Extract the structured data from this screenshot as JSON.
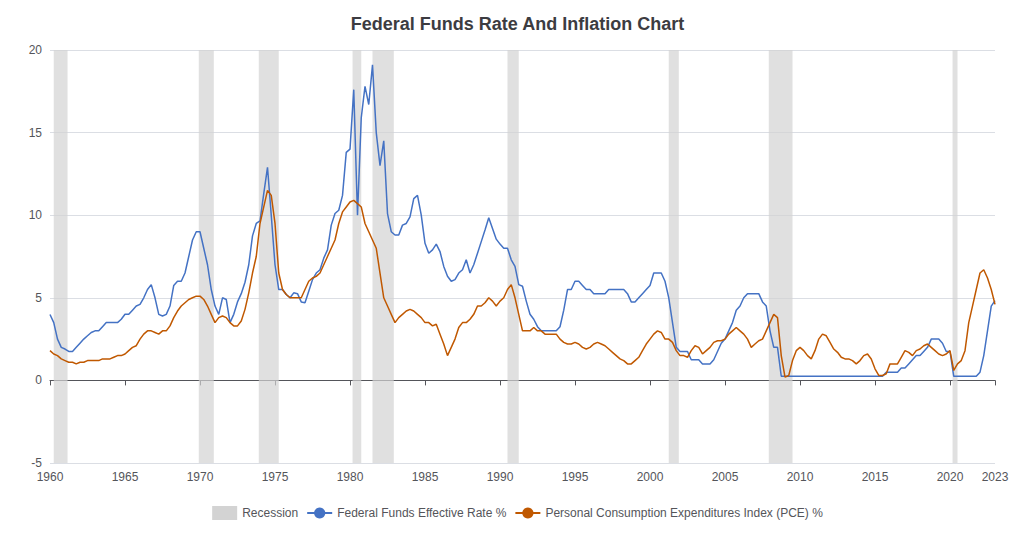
{
  "chart_data": {
    "type": "line",
    "title": "Federal Funds Rate And Inflation Chart",
    "xlim": [
      1960,
      2023
    ],
    "xticks": [
      1960,
      1965,
      1970,
      1975,
      1980,
      1985,
      1990,
      1995,
      2000,
      2005,
      2010,
      2015,
      2020
    ],
    "ylim": [
      -5,
      20
    ],
    "yticks": [
      -5,
      0,
      5,
      10,
      15,
      20
    ],
    "grid": true,
    "legend": "bottom",
    "recession": {
      "name": "Recession",
      "color": "#d3d3d3",
      "periods": [
        [
          1960.25,
          1961.17
        ],
        [
          1969.92,
          1970.92
        ],
        [
          1973.92,
          1975.25
        ],
        [
          1980.17,
          1980.75
        ],
        [
          1981.5,
          1982.92
        ],
        [
          1990.5,
          1991.25
        ],
        [
          2001.25,
          2001.92
        ],
        [
          2007.92,
          2009.5
        ],
        [
          2020.17,
          2020.5
        ]
      ]
    },
    "x": [
      1960.0,
      1960.25,
      1960.5,
      1960.75,
      1961.0,
      1961.25,
      1961.5,
      1961.75,
      1962.0,
      1962.25,
      1962.5,
      1962.75,
      1963.0,
      1963.25,
      1963.5,
      1963.75,
      1964.0,
      1964.25,
      1964.5,
      1964.75,
      1965.0,
      1965.25,
      1965.5,
      1965.75,
      1966.0,
      1966.25,
      1966.5,
      1966.75,
      1967.0,
      1967.25,
      1967.5,
      1967.75,
      1968.0,
      1968.25,
      1968.5,
      1968.75,
      1969.0,
      1969.25,
      1969.5,
      1969.75,
      1970.0,
      1970.25,
      1970.5,
      1970.75,
      1971.0,
      1971.25,
      1971.5,
      1971.75,
      1972.0,
      1972.25,
      1972.5,
      1972.75,
      1973.0,
      1973.25,
      1973.5,
      1973.75,
      1974.0,
      1974.25,
      1974.5,
      1974.75,
      1975.0,
      1975.25,
      1975.5,
      1975.75,
      1976.0,
      1976.25,
      1976.5,
      1976.75,
      1977.0,
      1977.25,
      1977.5,
      1977.75,
      1978.0,
      1978.25,
      1978.5,
      1978.75,
      1979.0,
      1979.25,
      1979.5,
      1979.75,
      1980.0,
      1980.25,
      1980.5,
      1980.75,
      1981.0,
      1981.25,
      1981.5,
      1981.75,
      1982.0,
      1982.25,
      1982.5,
      1982.75,
      1983.0,
      1983.25,
      1983.5,
      1983.75,
      1984.0,
      1984.25,
      1984.5,
      1984.75,
      1985.0,
      1985.25,
      1985.5,
      1985.75,
      1986.0,
      1986.25,
      1986.5,
      1986.75,
      1987.0,
      1987.25,
      1987.5,
      1987.75,
      1988.0,
      1988.25,
      1988.5,
      1988.75,
      1989.0,
      1989.25,
      1989.5,
      1989.75,
      1990.0,
      1990.25,
      1990.5,
      1990.75,
      1991.0,
      1991.25,
      1991.5,
      1991.75,
      1992.0,
      1992.25,
      1992.5,
      1992.75,
      1993.0,
      1993.25,
      1993.5,
      1993.75,
      1994.0,
      1994.25,
      1994.5,
      1994.75,
      1995.0,
      1995.25,
      1995.5,
      1995.75,
      1996.0,
      1996.25,
      1996.5,
      1996.75,
      1997.0,
      1997.25,
      1997.5,
      1997.75,
      1998.0,
      1998.25,
      1998.5,
      1998.75,
      1999.0,
      1999.25,
      1999.5,
      1999.75,
      2000.0,
      2000.25,
      2000.5,
      2000.75,
      2001.0,
      2001.25,
      2001.5,
      2001.75,
      2002.0,
      2002.25,
      2002.5,
      2002.75,
      2003.0,
      2003.25,
      2003.5,
      2003.75,
      2004.0,
      2004.25,
      2004.5,
      2004.75,
      2005.0,
      2005.25,
      2005.5,
      2005.75,
      2006.0,
      2006.25,
      2006.5,
      2006.75,
      2007.0,
      2007.25,
      2007.5,
      2007.75,
      2008.0,
      2008.25,
      2008.5,
      2008.75,
      2009.0,
      2009.25,
      2009.5,
      2009.75,
      2010.0,
      2010.25,
      2010.5,
      2010.75,
      2011.0,
      2011.25,
      2011.5,
      2011.75,
      2012.0,
      2012.25,
      2012.5,
      2012.75,
      2013.0,
      2013.25,
      2013.5,
      2013.75,
      2014.0,
      2014.25,
      2014.5,
      2014.75,
      2015.0,
      2015.25,
      2015.5,
      2015.75,
      2016.0,
      2016.25,
      2016.5,
      2016.75,
      2017.0,
      2017.25,
      2017.5,
      2017.75,
      2018.0,
      2018.25,
      2018.5,
      2018.75,
      2019.0,
      2019.25,
      2019.5,
      2019.75,
      2020.0,
      2020.25,
      2020.5,
      2020.75,
      2021.0,
      2021.25,
      2021.5,
      2021.75,
      2022.0,
      2022.25,
      2022.5,
      2022.75,
      2023.0
    ],
    "series": [
      {
        "name": "Federal Funds Effective Rate %",
        "color": "#4472c4",
        "values": [
          3.99,
          3.5,
          2.5,
          2.0,
          1.9,
          1.75,
          1.75,
          2.0,
          2.25,
          2.5,
          2.7,
          2.9,
          3.0,
          3.0,
          3.25,
          3.5,
          3.5,
          3.5,
          3.5,
          3.7,
          4.0,
          4.0,
          4.25,
          4.5,
          4.6,
          5.0,
          5.5,
          5.8,
          5.0,
          4.0,
          3.9,
          4.0,
          4.5,
          5.75,
          6.0,
          6.0,
          6.5,
          7.5,
          8.5,
          9.0,
          9.0,
          8.0,
          7.0,
          5.5,
          4.5,
          4.0,
          5.0,
          4.9,
          3.5,
          4.0,
          4.75,
          5.25,
          5.94,
          7.0,
          8.75,
          9.5,
          9.65,
          11.3,
          12.9,
          10.0,
          7.0,
          5.5,
          5.5,
          5.2,
          5.0,
          5.3,
          5.25,
          4.75,
          4.7,
          5.4,
          6.1,
          6.5,
          6.7,
          7.4,
          7.9,
          9.4,
          10.1,
          10.3,
          11.2,
          13.8,
          14.0,
          17.6,
          10.0,
          15.9,
          17.8,
          16.7,
          19.1,
          15.0,
          13.0,
          14.5,
          10.1,
          9.0,
          8.8,
          8.8,
          9.4,
          9.5,
          9.9,
          11.0,
          11.2,
          10.0,
          8.3,
          7.7,
          7.9,
          8.25,
          7.8,
          6.9,
          6.3,
          6.0,
          6.1,
          6.5,
          6.7,
          7.3,
          6.5,
          7.0,
          7.7,
          8.4,
          9.1,
          9.85,
          9.2,
          8.55,
          8.25,
          8.0,
          8.0,
          7.3,
          6.9,
          5.8,
          5.7,
          4.8,
          4.0,
          3.7,
          3.25,
          3.0,
          3.0,
          3.0,
          3.0,
          3.0,
          3.25,
          4.25,
          5.5,
          5.5,
          6.0,
          6.0,
          5.75,
          5.5,
          5.5,
          5.25,
          5.25,
          5.25,
          5.25,
          5.5,
          5.5,
          5.5,
          5.5,
          5.5,
          5.25,
          4.75,
          4.75,
          5.0,
          5.25,
          5.5,
          5.75,
          6.5,
          6.5,
          6.5,
          6.0,
          5.0,
          3.5,
          2.0,
          1.75,
          1.75,
          1.75,
          1.25,
          1.25,
          1.25,
          1.0,
          1.0,
          1.0,
          1.25,
          1.75,
          2.25,
          2.5,
          3.0,
          3.5,
          4.25,
          4.5,
          5.0,
          5.25,
          5.25,
          5.25,
          5.25,
          4.75,
          4.5,
          3.0,
          2.0,
          2.0,
          0.25,
          0.25,
          0.25,
          0.25,
          0.25,
          0.25,
          0.25,
          0.25,
          0.25,
          0.25,
          0.25,
          0.25,
          0.25,
          0.25,
          0.25,
          0.25,
          0.25,
          0.25,
          0.25,
          0.25,
          0.25,
          0.25,
          0.25,
          0.25,
          0.25,
          0.25,
          0.25,
          0.25,
          0.5,
          0.5,
          0.5,
          0.5,
          0.75,
          0.75,
          1.0,
          1.25,
          1.5,
          1.5,
          1.75,
          2.0,
          2.5,
          2.5,
          2.5,
          2.25,
          1.75,
          1.75,
          0.25,
          0.25,
          0.25,
          0.25,
          0.25,
          0.25,
          0.25,
          0.5,
          1.5,
          3.0,
          4.5,
          4.83
        ]
      },
      {
        "name": "Personal Consumption Expenditures Index (PCE) %",
        "color": "#c05800",
        "values": [
          1.8,
          1.6,
          1.5,
          1.3,
          1.2,
          1.1,
          1.1,
          1.0,
          1.1,
          1.1,
          1.2,
          1.2,
          1.2,
          1.2,
          1.3,
          1.3,
          1.3,
          1.4,
          1.5,
          1.5,
          1.6,
          1.8,
          2.0,
          2.1,
          2.5,
          2.8,
          3.0,
          3.0,
          2.9,
          2.8,
          3.0,
          3.0,
          3.3,
          3.8,
          4.2,
          4.5,
          4.7,
          4.9,
          5.0,
          5.1,
          5.1,
          4.9,
          4.5,
          4.0,
          3.5,
          3.8,
          3.9,
          3.8,
          3.5,
          3.3,
          3.3,
          3.6,
          4.3,
          5.3,
          6.5,
          7.5,
          9.5,
          10.5,
          11.5,
          11.2,
          9.5,
          6.5,
          5.5,
          5.2,
          5.0,
          5.0,
          5.0,
          5.0,
          5.5,
          6.0,
          6.2,
          6.3,
          6.5,
          7.0,
          7.5,
          8.0,
          8.5,
          9.5,
          10.2,
          10.5,
          10.8,
          10.9,
          10.7,
          10.5,
          9.5,
          9.0,
          8.5,
          8.0,
          6.5,
          5.0,
          4.5,
          4.0,
          3.5,
          3.8,
          4.0,
          4.2,
          4.3,
          4.2,
          4.0,
          3.8,
          3.5,
          3.5,
          3.3,
          3.4,
          2.8,
          2.2,
          1.5,
          2.0,
          2.5,
          3.2,
          3.5,
          3.5,
          3.7,
          4.0,
          4.5,
          4.5,
          4.7,
          5.0,
          4.8,
          4.5,
          4.8,
          5.0,
          5.5,
          5.8,
          5.0,
          4.0,
          3.0,
          3.0,
          3.0,
          3.2,
          3.0,
          3.0,
          2.8,
          2.8,
          2.8,
          2.8,
          2.5,
          2.3,
          2.2,
          2.2,
          2.3,
          2.2,
          2.0,
          1.9,
          2.0,
          2.2,
          2.3,
          2.2,
          2.1,
          1.9,
          1.7,
          1.5,
          1.3,
          1.2,
          1.0,
          1.0,
          1.2,
          1.4,
          1.8,
          2.2,
          2.5,
          2.8,
          3.0,
          2.9,
          2.5,
          2.5,
          2.3,
          1.8,
          1.5,
          1.5,
          1.4,
          1.8,
          2.1,
          2.0,
          1.6,
          1.8,
          2.0,
          2.3,
          2.4,
          2.4,
          2.5,
          2.8,
          3.0,
          3.2,
          3.0,
          2.8,
          2.5,
          2.0,
          2.2,
          2.4,
          2.5,
          3.0,
          3.5,
          4.0,
          3.8,
          1.5,
          0.2,
          0.3,
          1.2,
          1.8,
          2.0,
          1.8,
          1.5,
          1.3,
          1.8,
          2.5,
          2.8,
          2.7,
          2.3,
          1.9,
          1.7,
          1.4,
          1.3,
          1.3,
          1.2,
          1.0,
          1.2,
          1.5,
          1.6,
          1.3,
          0.7,
          0.3,
          0.3,
          0.4,
          1.0,
          1.0,
          1.0,
          1.4,
          1.8,
          1.7,
          1.5,
          1.8,
          1.9,
          2.1,
          2.2,
          2.0,
          1.8,
          1.6,
          1.5,
          1.6,
          1.8,
          0.6,
          1.0,
          1.2,
          1.8,
          3.5,
          4.5,
          5.5,
          6.5,
          6.7,
          6.2,
          5.5,
          4.6
        ]
      }
    ]
  }
}
